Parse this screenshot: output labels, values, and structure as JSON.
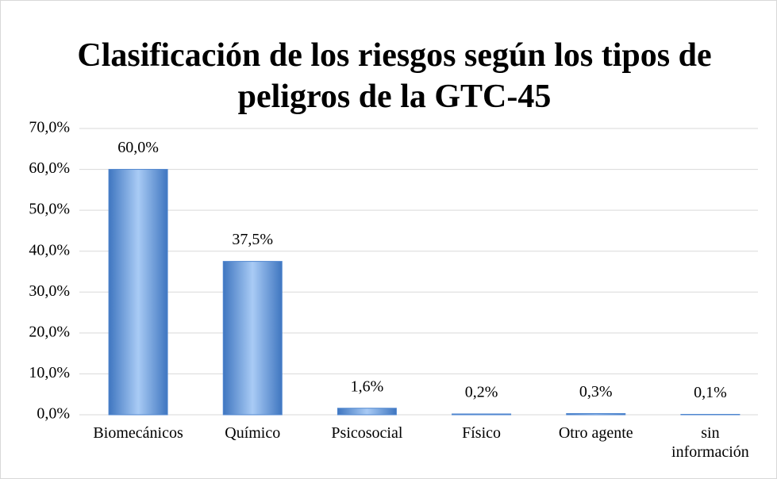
{
  "chart_data": {
    "type": "bar",
    "title": "Clasificación de los riesgos según los tipos de peligros de la GTC-45",
    "categories": [
      "Biomecánicos",
      "Químico",
      "Psicosocial",
      "Físico",
      "Otro agente",
      "sin información"
    ],
    "values": [
      60.0,
      37.5,
      1.6,
      0.2,
      0.3,
      0.1
    ],
    "value_labels": [
      "60,0%",
      "37,5%",
      "1,6%",
      "0,2%",
      "0,3%",
      "0,1%"
    ],
    "color": "#4f86cf",
    "ylim": [
      0,
      70
    ],
    "yticks": [
      {
        "value": 0,
        "label": "0,0%"
      },
      {
        "value": 10,
        "label": "10,0%"
      },
      {
        "value": 20,
        "label": "20,0%"
      },
      {
        "value": 30,
        "label": "30,0%"
      },
      {
        "value": 40,
        "label": "40,0%"
      },
      {
        "value": 50,
        "label": "50,0%"
      },
      {
        "value": 60,
        "label": "60,0%"
      },
      {
        "value": 70,
        "label": "70,0%"
      }
    ],
    "grid": true
  }
}
